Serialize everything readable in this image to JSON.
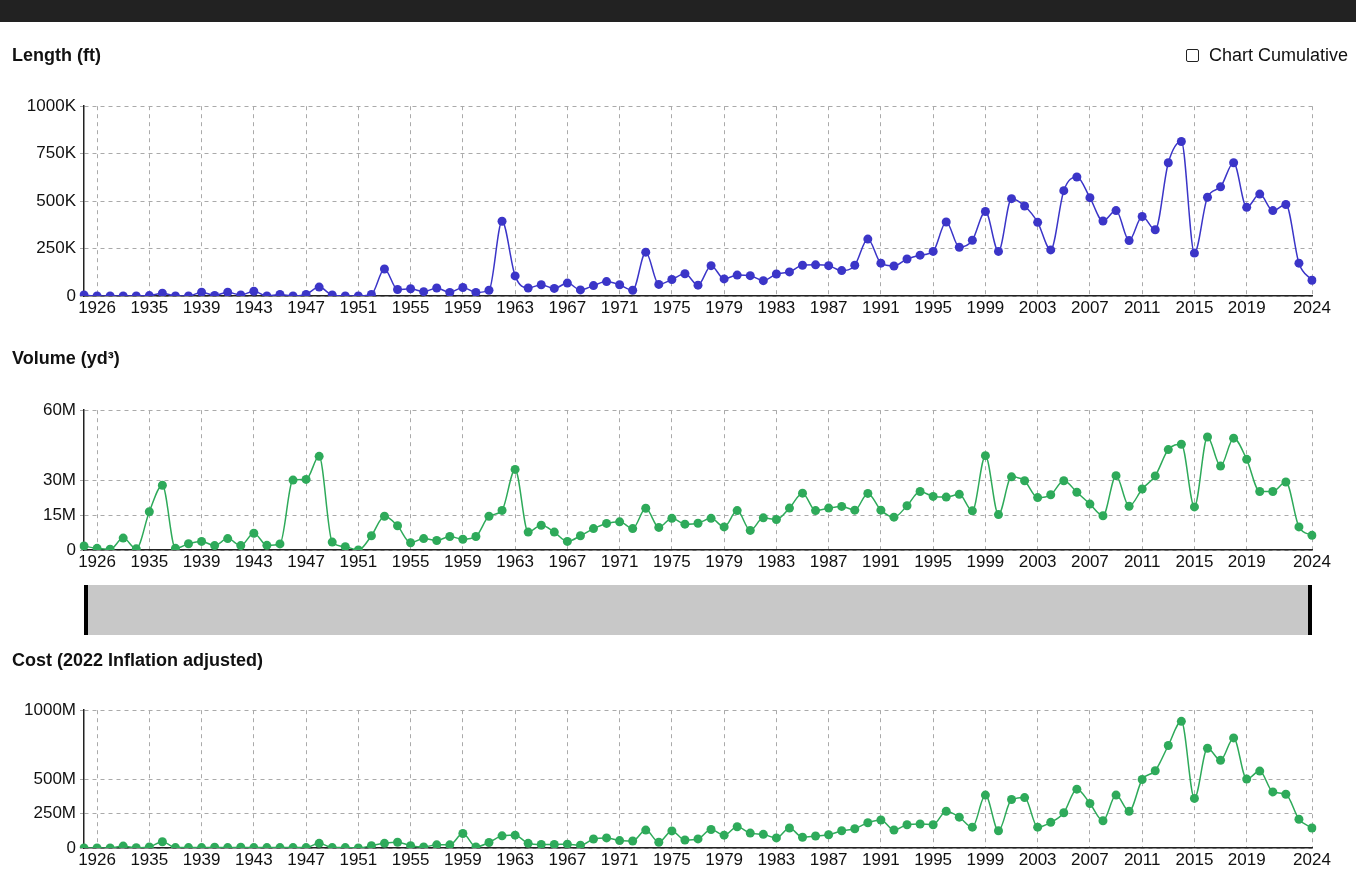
{
  "chart_data": [
    {
      "type": "line",
      "title": "Length (ft)",
      "annotations": [
        "Chart Cumulative"
      ],
      "categories": [
        null,
        "1926",
        null,
        null,
        null,
        "1935",
        null,
        null,
        null,
        "1939",
        null,
        null,
        null,
        "1943",
        null,
        null,
        null,
        "1947",
        null,
        null,
        null,
        "1951",
        null,
        null,
        null,
        "1955",
        null,
        null,
        null,
        "1959",
        null,
        null,
        null,
        "1963",
        null,
        null,
        null,
        "1967",
        null,
        null,
        null,
        "1971",
        null,
        null,
        null,
        "1975",
        null,
        null,
        null,
        "1979",
        null,
        null,
        null,
        "1983",
        null,
        null,
        null,
        "1987",
        null,
        null,
        null,
        "1991",
        null,
        null,
        null,
        "1995",
        null,
        null,
        null,
        "1999",
        null,
        null,
        null,
        "2003",
        null,
        null,
        null,
        "2007",
        null,
        null,
        null,
        "2011",
        null,
        null,
        null,
        "2015",
        null,
        null,
        null,
        "2019",
        null,
        null,
        null,
        null,
        "2024"
      ],
      "series": [
        {
          "color": "#3b35c8",
          "values": [
            5000,
            0,
            0,
            0,
            0,
            2000,
            15000,
            0,
            0,
            20000,
            3000,
            20000,
            5000,
            25000,
            0,
            8000,
            0,
            8000,
            47000,
            5000,
            0,
            0,
            8000,
            142000,
            34000,
            38000,
            23000,
            42000,
            19000,
            45000,
            19000,
            30000,
            394000,
            106000,
            42000,
            59000,
            40000,
            68000,
            32000,
            55000,
            76000,
            59000,
            30000,
            231000,
            61000,
            87000,
            117000,
            57000,
            160000,
            90000,
            110000,
            107000,
            81000,
            116000,
            127000,
            162000,
            164000,
            160000,
            134000,
            162000,
            300000,
            173000,
            158000,
            195000,
            215000,
            235000,
            390000,
            257000,
            294000,
            445000,
            235000,
            513000,
            474000,
            388000,
            243000,
            555000,
            627000,
            518000,
            395000,
            450000,
            292000,
            419000,
            349000,
            702000,
            814000,
            226000,
            520000,
            575000,
            702000,
            467000,
            537000,
            450000,
            482000,
            173000,
            83000
          ]
        }
      ],
      "ylim": [
        0,
        1000000
      ],
      "yticks": [
        {
          "value": 0,
          "label": "0"
        },
        {
          "value": 250000,
          "label": "250K"
        },
        {
          "value": 500000,
          "label": "500K"
        },
        {
          "value": 750000,
          "label": "750K"
        },
        {
          "value": 1000000,
          "label": "1000K"
        }
      ],
      "grid": true,
      "marker": "circle"
    },
    {
      "type": "line",
      "title": "Volume (yd³)",
      "categories": [
        null,
        "1926",
        null,
        null,
        null,
        "1935",
        null,
        null,
        null,
        "1939",
        null,
        null,
        null,
        "1943",
        null,
        null,
        null,
        "1947",
        null,
        null,
        null,
        "1951",
        null,
        null,
        null,
        "1955",
        null,
        null,
        null,
        "1959",
        null,
        null,
        null,
        "1963",
        null,
        null,
        null,
        "1967",
        null,
        null,
        null,
        "1971",
        null,
        null,
        null,
        "1975",
        null,
        null,
        null,
        "1979",
        null,
        null,
        null,
        "1983",
        null,
        null,
        null,
        "1987",
        null,
        null,
        null,
        "1991",
        null,
        null,
        null,
        "1995",
        null,
        null,
        null,
        "1999",
        null,
        null,
        null,
        "2003",
        null,
        null,
        null,
        "2007",
        null,
        null,
        null,
        "2011",
        null,
        null,
        null,
        "2015",
        null,
        null,
        null,
        "2019",
        null,
        null,
        null,
        null,
        "2024"
      ],
      "series": [
        {
          "color": "#2eaa5a",
          "values": [
            1700000,
            700000,
            300000,
            5100000,
            500000,
            16400000,
            27800000,
            700000,
            2700000,
            3700000,
            1900000,
            4900000,
            1900000,
            7200000,
            2000000,
            2600000,
            30000000,
            30300000,
            40200000,
            3400000,
            1400000,
            0,
            6100000,
            14500000,
            10400000,
            3100000,
            4900000,
            4100000,
            5800000,
            4600000,
            5800000,
            14500000,
            17000000,
            34600000,
            7700000,
            10600000,
            7700000,
            3700000,
            6100000,
            9200000,
            11400000,
            12100000,
            9200000,
            17900000,
            9700000,
            13600000,
            11100000,
            11500000,
            13600000,
            9900000,
            16900000,
            8400000,
            13800000,
            13100000,
            18000000,
            24400000,
            16900000,
            18000000,
            18700000,
            17100000,
            24300000,
            17100000,
            14100000,
            19000000,
            25100000,
            23000000,
            22700000,
            23900000,
            16800000,
            40500000,
            15200000,
            31400000,
            29700000,
            22500000,
            23700000,
            29700000,
            24800000,
            19700000,
            14700000,
            31900000,
            18800000,
            26200000,
            31800000,
            43100000,
            45400000,
            18500000,
            48500000,
            36000000,
            48000000,
            38900000,
            25100000,
            25100000,
            29200000,
            9900000,
            6300000
          ]
        }
      ],
      "ylim": [
        0,
        60000000
      ],
      "yticks": [
        {
          "value": 0,
          "label": "0"
        },
        {
          "value": 15000000,
          "label": "15M"
        },
        {
          "value": 30000000,
          "label": "30M"
        },
        {
          "value": 60000000,
          "label": "60M"
        }
      ],
      "grid": true,
      "marker": "circle"
    },
    {
      "type": "line",
      "title": "Cost (2022 Inflation adjusted)",
      "categories": [
        null,
        "1926",
        null,
        null,
        null,
        "1935",
        null,
        null,
        null,
        "1939",
        null,
        null,
        null,
        "1943",
        null,
        null,
        null,
        "1947",
        null,
        null,
        null,
        "1951",
        null,
        null,
        null,
        "1955",
        null,
        null,
        null,
        "1959",
        null,
        null,
        null,
        "1963",
        null,
        null,
        null,
        "1967",
        null,
        null,
        null,
        "1971",
        null,
        null,
        null,
        "1975",
        null,
        null,
        null,
        "1979",
        null,
        null,
        null,
        "1983",
        null,
        null,
        null,
        "1987",
        null,
        null,
        null,
        "1991",
        null,
        null,
        null,
        "1995",
        null,
        null,
        null,
        "1999",
        null,
        null,
        null,
        "2003",
        null,
        null,
        null,
        "2007",
        null,
        null,
        null,
        "2011",
        null,
        null,
        null,
        "2015",
        null,
        null,
        null,
        "2019",
        null,
        null,
        null,
        null,
        "2024"
      ],
      "series": [
        {
          "color": "#2eaa5a",
          "values": [
            0,
            0,
            0,
            14000000,
            2000000,
            8000000,
            45000000,
            3000000,
            3000000,
            3000000,
            6000000,
            3000000,
            6000000,
            3000000,
            3000000,
            3000000,
            3000000,
            3000000,
            34000000,
            3000000,
            3000000,
            0,
            17000000,
            34000000,
            42000000,
            17000000,
            8000000,
            23000000,
            23000000,
            105000000,
            8000000,
            40000000,
            88000000,
            93000000,
            34000000,
            25000000,
            25000000,
            28000000,
            20000000,
            65000000,
            73000000,
            54000000,
            51000000,
            130000000,
            42000000,
            124000000,
            58000000,
            66000000,
            134000000,
            93000000,
            154000000,
            108000000,
            99000000,
            73000000,
            145000000,
            78000000,
            87000000,
            96000000,
            125000000,
            140000000,
            183000000,
            203000000,
            131000000,
            169000000,
            174000000,
            169000000,
            267000000,
            224000000,
            151000000,
            384000000,
            125000000,
            352000000,
            366000000,
            151000000,
            186000000,
            256000000,
            427000000,
            323000000,
            198000000,
            384000000,
            267000000,
            497000000,
            561000000,
            744000000,
            919000000,
            360000000,
            724000000,
            637000000,
            799000000,
            500000000,
            558000000,
            407000000,
            390000000,
            209000000,
            145000000
          ]
        }
      ],
      "ylim": [
        0,
        1000000000
      ],
      "yticks": [
        {
          "value": 0,
          "label": "0"
        },
        {
          "value": 250000000,
          "label": "250M"
        },
        {
          "value": 500000000,
          "label": "500M"
        },
        {
          "value": 1000000000,
          "label": "1000M"
        }
      ],
      "grid": true,
      "marker": "circle"
    }
  ]
}
